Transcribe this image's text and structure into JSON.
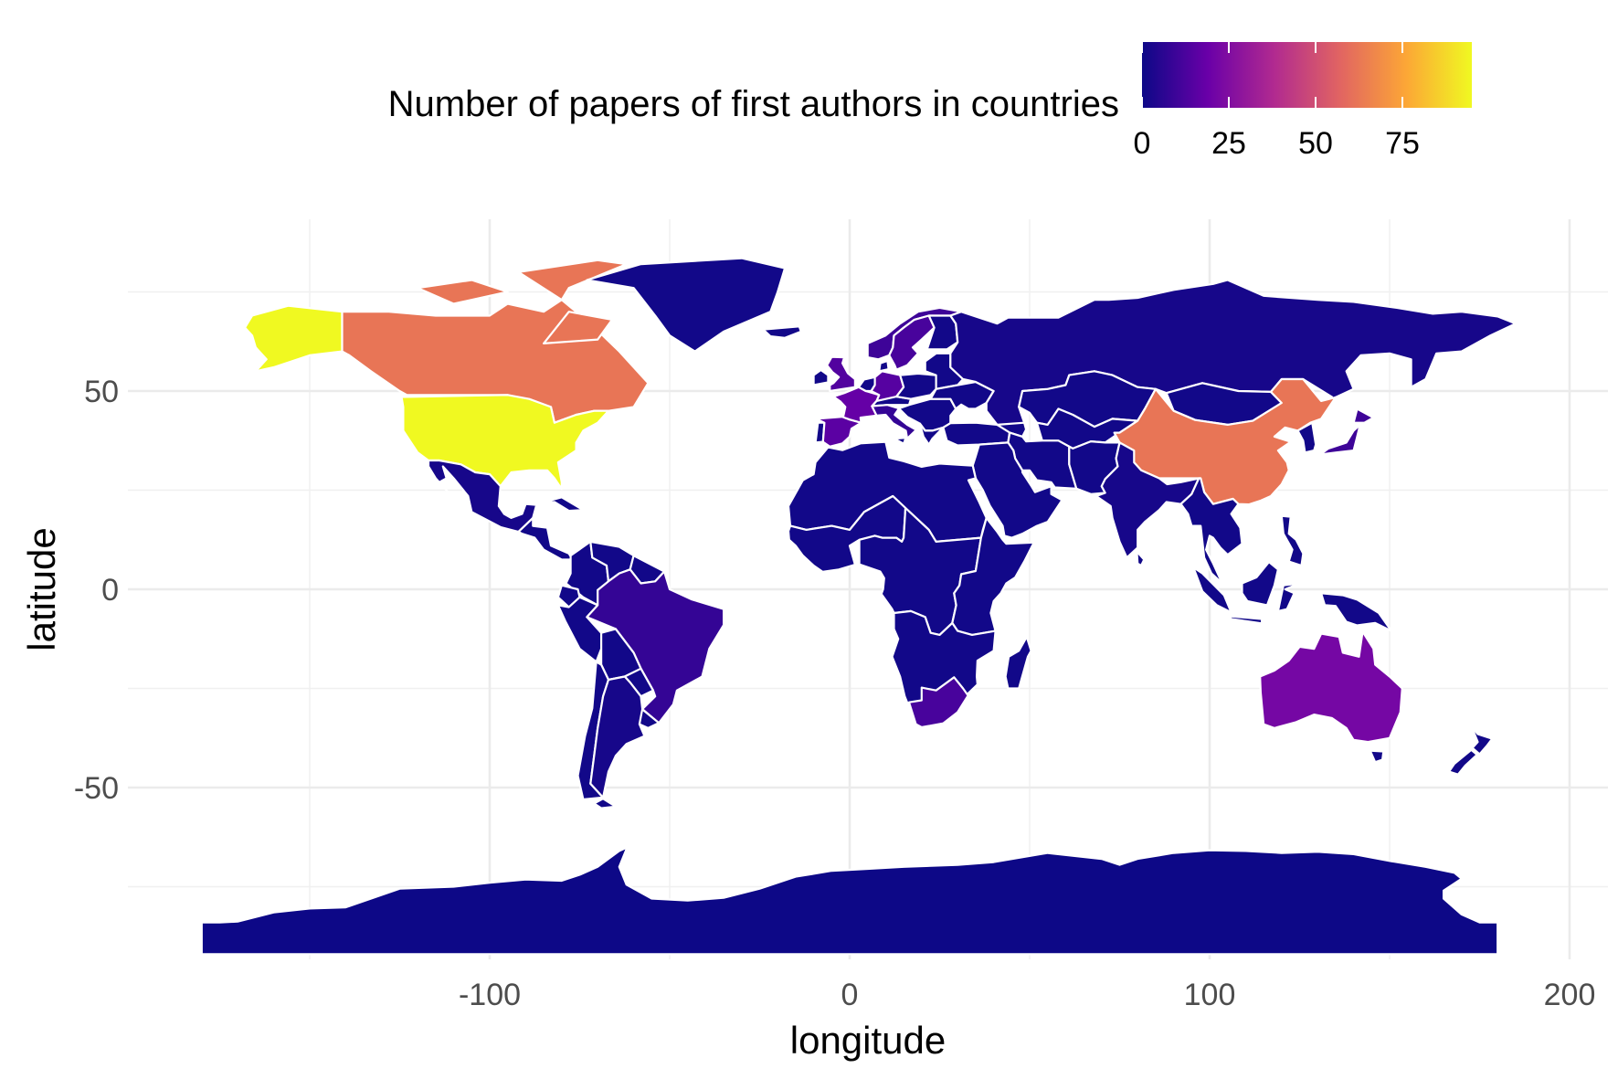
{
  "chart_data": {
    "type": "choropleth",
    "title": "",
    "xlabel": "longitude",
    "ylabel": "latitude",
    "xlim": [
      -190,
      205
    ],
    "ylim": [
      -92,
      92
    ],
    "x_ticks": [
      -100,
      0,
      100,
      200
    ],
    "x_tick_labels": [
      "-100",
      "0",
      "100",
      "200"
    ],
    "y_ticks": [
      -50,
      0,
      50
    ],
    "y_tick_labels": [
      "-50",
      "0",
      "50"
    ],
    "grid": true,
    "legend": {
      "title": "Number of papers of first authors in countries",
      "position": "top",
      "palette": "plasma",
      "range": [
        0,
        95
      ],
      "breaks": [
        0,
        25,
        50,
        75
      ],
      "break_labels": [
        "0",
        "25",
        "50",
        "75"
      ],
      "colors": [
        "#0d0887",
        "#6a00a8",
        "#b12a90",
        "#e16462",
        "#fca636",
        "#f0f921"
      ]
    },
    "regions": [
      {
        "name": "United States",
        "value": 95
      },
      {
        "name": "Alaska",
        "value": 95
      },
      {
        "name": "Canada",
        "value": 62
      },
      {
        "name": "China",
        "value": 62
      },
      {
        "name": "Australia",
        "value": 22
      },
      {
        "name": "France",
        "value": 18
      },
      {
        "name": "Spain",
        "value": 16
      },
      {
        "name": "Germany",
        "value": 15
      },
      {
        "name": "United Kingdom",
        "value": 14
      },
      {
        "name": "Sweden",
        "value": 12
      },
      {
        "name": "Norway",
        "value": 10
      },
      {
        "name": "Brazil",
        "value": 8
      },
      {
        "name": "South Africa",
        "value": 12
      },
      {
        "name": "Japan",
        "value": 10
      },
      {
        "name": "Italy",
        "value": 8
      },
      {
        "name": "Netherlands",
        "value": 6
      },
      {
        "name": "Greenland",
        "value": 1
      },
      {
        "name": "Russia",
        "value": 2
      },
      {
        "name": "Mexico",
        "value": 2
      },
      {
        "name": "India",
        "value": 2
      },
      {
        "name": "Argentina",
        "value": 2
      },
      {
        "name": "Antarctica",
        "value": 0
      }
    ]
  }
}
